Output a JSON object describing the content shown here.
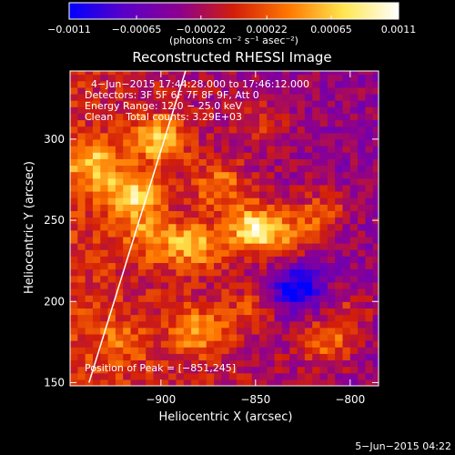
{
  "chart_data": {
    "type": "heatmap",
    "title": "Reconstructed RHESSI Image",
    "xlabel": "Heliocentric X (arcsec)",
    "ylabel": "Heliocentric Y (arcsec)",
    "xlim": [
      -948,
      -785
    ],
    "ylim": [
      148,
      342
    ],
    "xticks": [
      -900,
      -850,
      -800
    ],
    "xtick_labels": [
      "−900",
      "−850",
      "−800"
    ],
    "yticks": [
      150,
      200,
      250,
      300
    ],
    "ytick_labels": [
      "150",
      "200",
      "250",
      "300"
    ],
    "colorbar": {
      "range": [
        -0.0011,
        0.0011
      ],
      "ticks": [
        -0.0011,
        -0.00065,
        -0.00022,
        0.00022,
        0.00065,
        0.0011
      ],
      "tick_labels": [
        "−0.0011",
        "−0.00065",
        "−0.00022",
        "0.00022",
        "0.00065",
        "0.0011"
      ],
      "unit_label": "(photons cm⁻² s⁻¹ asec⁻²)",
      "colors": [
        "#0000ff",
        "#5a00c8",
        "#8c0090",
        "#d21e0a",
        "#ff7800",
        "#ffe650",
        "#ffffff"
      ]
    },
    "annotations": [
      "4−Jun−2015 17:44:28.000 to 17:46:12.000",
      "Detectors: 3F 5F 6F 7F 8F 9F, Att 0",
      "Energy Range: 12.0 − 25.0 keV",
      "Clean    Total counts: 3.29E+03"
    ],
    "peak_label": "Position of Peak = [−851,245]",
    "peak": [
      -851,
      245
    ],
    "limb_line": [
      [
        -938,
        150
      ],
      [
        -887,
        342
      ]
    ],
    "sources": [
      {
        "x": -850,
        "y": 245,
        "level": 0.0011
      },
      {
        "x": -915,
        "y": 265,
        "level": 0.00085
      },
      {
        "x": -900,
        "y": 300,
        "level": 0.0008
      },
      {
        "x": -935,
        "y": 285,
        "level": 0.0007
      },
      {
        "x": -882,
        "y": 235,
        "level": 0.0007
      },
      {
        "x": -868,
        "y": 272,
        "level": 0.0006
      },
      {
        "x": -905,
        "y": 240,
        "level": 0.0005
      },
      {
        "x": -880,
        "y": 182,
        "level": 0.0006
      },
      {
        "x": -855,
        "y": 195,
        "level": 0.0003
      },
      {
        "x": -830,
        "y": 240,
        "level": 0.0004
      },
      {
        "x": -815,
        "y": 255,
        "level": 0.0005
      },
      {
        "x": -812,
        "y": 175,
        "level": 0.0006
      },
      {
        "x": -800,
        "y": 195,
        "level": 0.0003
      },
      {
        "x": -845,
        "y": 310,
        "level": 0.0003
      },
      {
        "x": -922,
        "y": 175,
        "level": 0.0003
      },
      {
        "x": -828,
        "y": 208,
        "level": -0.0009
      }
    ]
  },
  "footer": {
    "date": "5−Jun−2015 04:22"
  }
}
